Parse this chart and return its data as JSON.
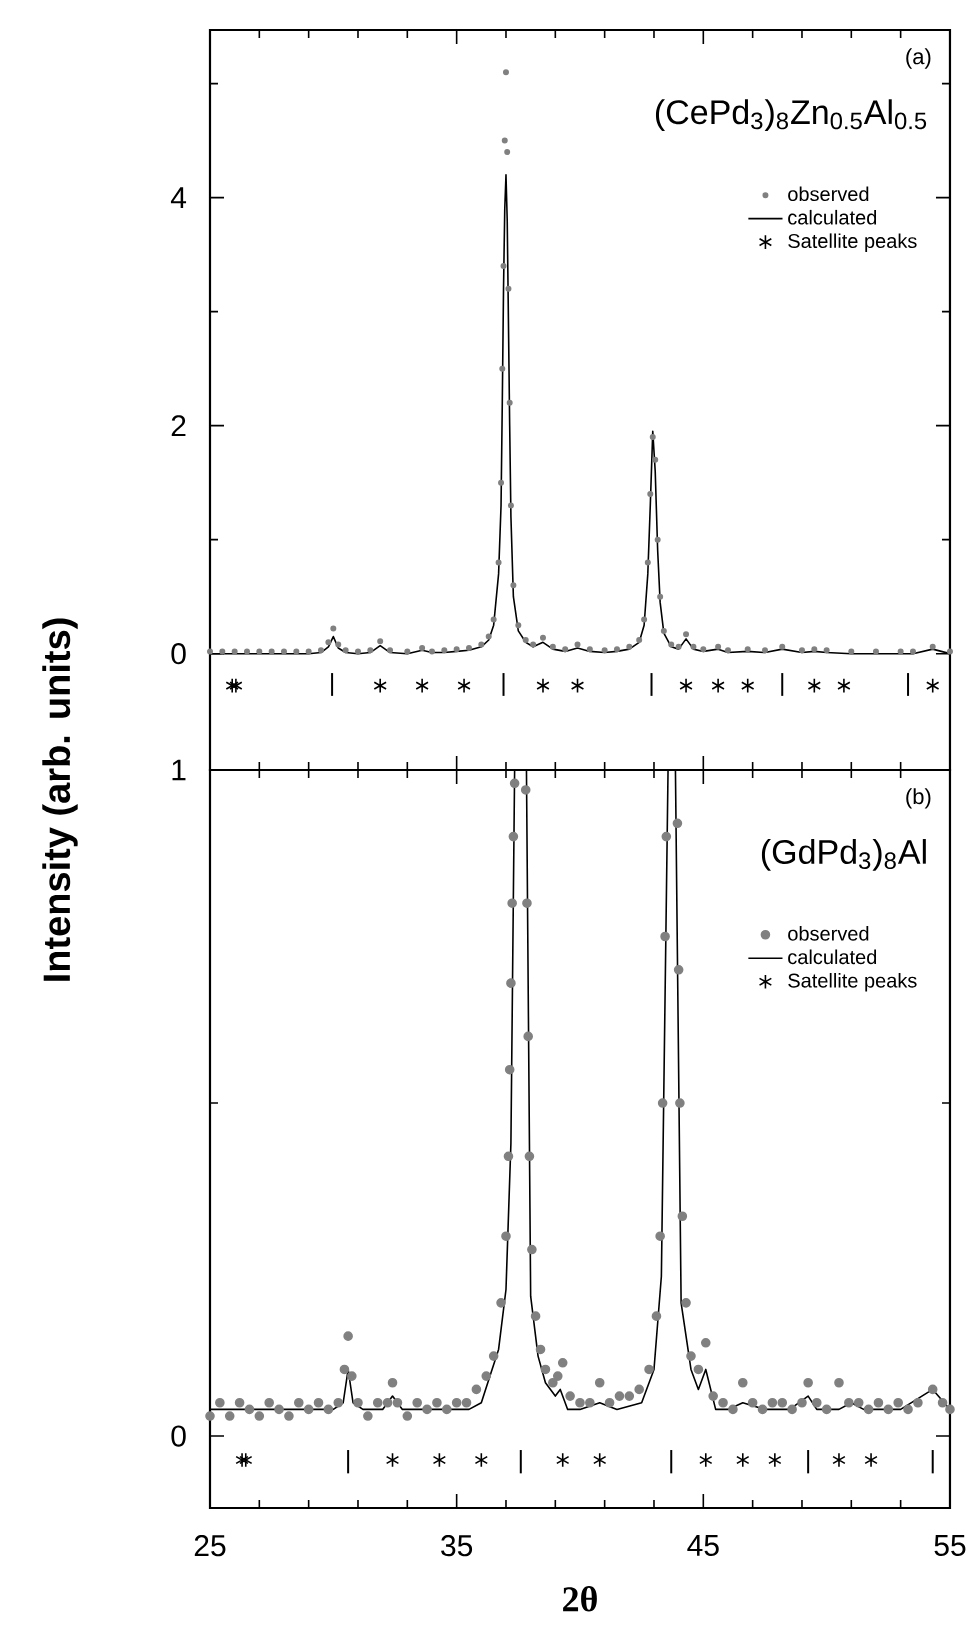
{
  "chart_data": [
    {
      "type": "scatter",
      "title": "(CePd$_{3}$)$_{8}$Zn$_{0.5}$Al$_{0.5}$",
      "ylabel": "Intensity (arb. units)",
      "annotations": [
        "(a)"
      ],
      "xlim": [
        25,
        55
      ],
      "ylim": [
        -1.02,
        5.47
      ],
      "xticks": [
        25,
        {
          "value": 27,
          "label": null
        },
        {
          "value": 29,
          "label": null
        },
        {
          "value": 31,
          "label": null
        },
        {
          "value": 33,
          "label": null
        },
        35,
        {
          "value": 37,
          "label": null
        },
        {
          "value": 39,
          "label": null
        },
        {
          "value": 41,
          "label": null
        },
        {
          "value": 43,
          "label": null
        },
        45,
        {
          "value": 47,
          "label": null
        },
        {
          "value": 49,
          "label": null
        },
        {
          "value": 51,
          "label": null
        },
        {
          "value": 53,
          "label": null
        },
        55
      ],
      "yticks": [
        0,
        {
          "value": 1,
          "label": null
        },
        2,
        {
          "value": 3,
          "label": null
        },
        4,
        {
          "value": 5,
          "label": null
        }
      ],
      "tick_labels": "y",
      "legend": "top right",
      "series": [
        {
          "name": "observed",
          "marker": "circle",
          "color": "#808080",
          "x": [
            25,
            25.5,
            26,
            26.5,
            27,
            27.5,
            28,
            28.5,
            29,
            29.5,
            29.8,
            30,
            30.2,
            30.5,
            31,
            31.5,
            31.9,
            32.3,
            33,
            33.6,
            34,
            34.5,
            35,
            35.5,
            36,
            36.3,
            36.5,
            36.7,
            36.8,
            36.85,
            36.9,
            36.95,
            37,
            37.05,
            37.1,
            37.15,
            37.2,
            37.3,
            37.5,
            37.8,
            38.1,
            38.5,
            38.9,
            39.4,
            39.9,
            40.4,
            41,
            41.5,
            42,
            42.4,
            42.6,
            42.75,
            42.85,
            42.95,
            43.05,
            43.15,
            43.25,
            43.4,
            43.7,
            44,
            44.3,
            44.6,
            45,
            45.6,
            46,
            46.8,
            47.5,
            48.2,
            49,
            49.5,
            50,
            51,
            52,
            53,
            53.5,
            54.3,
            55
          ],
          "values": [
            0.02,
            0.02,
            0.02,
            0.02,
            0.02,
            0.02,
            0.02,
            0.02,
            0.02,
            0.03,
            0.1,
            0.22,
            0.08,
            0.03,
            0.02,
            0.03,
            0.11,
            0.03,
            0.02,
            0.05,
            0.02,
            0.03,
            0.04,
            0.05,
            0.08,
            0.15,
            0.3,
            0.8,
            1.5,
            2.5,
            3.4,
            4.5,
            5.1,
            4.4,
            3.2,
            2.2,
            1.3,
            0.6,
            0.25,
            0.12,
            0.08,
            0.14,
            0.06,
            0.04,
            0.08,
            0.04,
            0.03,
            0.04,
            0.06,
            0.12,
            0.3,
            0.8,
            1.4,
            1.9,
            1.7,
            1.0,
            0.5,
            0.2,
            0.08,
            0.06,
            0.17,
            0.06,
            0.04,
            0.06,
            0.03,
            0.04,
            0.03,
            0.06,
            0.03,
            0.04,
            0.03,
            0.02,
            0.02,
            0.02,
            0.02,
            0.06,
            0.02
          ]
        },
        {
          "name": "calculated",
          "type": "line",
          "marker": "none",
          "line_style": "solid",
          "color": "#000000",
          "x": [
            25,
            25.5,
            26,
            26.5,
            27,
            27.5,
            28,
            28.5,
            29,
            29.5,
            29.8,
            30,
            30.2,
            30.5,
            31,
            31.5,
            31.9,
            32.3,
            33,
            33.6,
            34,
            34.5,
            35,
            35.5,
            36,
            36.3,
            36.5,
            36.7,
            36.8,
            36.85,
            36.9,
            36.95,
            37,
            37.05,
            37.1,
            37.15,
            37.2,
            37.3,
            37.5,
            37.8,
            38.1,
            38.5,
            38.9,
            39.4,
            39.9,
            40.4,
            41,
            41.5,
            42,
            42.4,
            42.6,
            42.75,
            42.85,
            42.95,
            43.05,
            43.15,
            43.25,
            43.4,
            43.7,
            44,
            44.3,
            44.6,
            45,
            45.6,
            46,
            46.8,
            47.5,
            48.2,
            49,
            49.5,
            50,
            51,
            52,
            53,
            53.5,
            54.3,
            55
          ],
          "values": [
            0,
            0,
            0,
            0,
            0,
            0,
            0,
            0,
            0,
            0.01,
            0.06,
            0.15,
            0.05,
            0.01,
            0,
            0.01,
            0.07,
            0.01,
            0,
            0.03,
            0.01,
            0.01,
            0.02,
            0.03,
            0.06,
            0.12,
            0.25,
            0.7,
            1.3,
            2.2,
            3.2,
            3.9,
            4.2,
            3.8,
            2.9,
            2.0,
            1.2,
            0.5,
            0.2,
            0.1,
            0.06,
            0.1,
            0.04,
            0.02,
            0.05,
            0.02,
            0.01,
            0.02,
            0.04,
            0.1,
            0.25,
            0.7,
            1.3,
            1.95,
            1.6,
            0.9,
            0.45,
            0.18,
            0.06,
            0.04,
            0.13,
            0.04,
            0.02,
            0.04,
            0.01,
            0.02,
            0.01,
            0.04,
            0.01,
            0.02,
            0.01,
            0,
            0,
            0,
            0,
            0.04,
            0
          ]
        },
        {
          "name": "Satellite peaks",
          "marker": "cross",
          "color": "#000000",
          "x": [
            25.9,
            26.05,
            31.9,
            33.6,
            35.3,
            38.5,
            39.9,
            44.3,
            45.6,
            46.8,
            49.5,
            50.7,
            54.3
          ],
          "values": [
            -0.28,
            -0.28,
            -0.28,
            -0.28,
            -0.28,
            -0.28,
            -0.28,
            -0.28,
            -0.28,
            -0.28,
            -0.28,
            -0.28,
            -0.28
          ]
        },
        {
          "type": "bar",
          "color": "#000000",
          "x": [
            29.95,
            36.9,
            42.9,
            48.2,
            53.3
          ],
          "base": [
            -0.37,
            -0.37,
            -0.37,
            -0.37,
            -0.37
          ],
          "values": [
            0.2,
            0.2,
            0.2,
            0.2,
            0.2
          ]
        }
      ]
    },
    {
      "type": "scatter",
      "title": "(GdPd$_{3}$)$_{8}$Al",
      "xlabel": "2θ",
      "annotations": [
        "(b)"
      ],
      "xlim": [
        25,
        55
      ],
      "ylim": [
        -0.108,
        1
      ],
      "xticks": [
        25,
        {
          "value": 27,
          "label": null
        },
        {
          "value": 29,
          "label": null
        },
        {
          "value": 31,
          "label": null
        },
        {
          "value": 33,
          "label": null
        },
        35,
        {
          "value": 37,
          "label": null
        },
        {
          "value": 39,
          "label": null
        },
        {
          "value": 41,
          "label": null
        },
        {
          "value": 43,
          "label": null
        },
        45,
        {
          "value": 47,
          "label": null
        },
        {
          "value": 49,
          "label": null
        },
        {
          "value": 51,
          "label": null
        },
        {
          "value": 53,
          "label": null
        },
        55
      ],
      "yticks": [
        0,
        {
          "value": 0.5,
          "label": null
        },
        1
      ],
      "legend": "top right",
      "series": [
        {
          "name": "observed",
          "marker": "circle",
          "color": "#808080",
          "x": [
            25,
            25.4,
            25.8,
            26.2,
            26.6,
            27,
            27.4,
            27.8,
            28.2,
            28.6,
            29,
            29.4,
            29.8,
            30.2,
            30.45,
            30.6,
            30.75,
            31,
            31.4,
            31.8,
            32.2,
            32.4,
            32.6,
            33,
            33.4,
            33.8,
            34.2,
            34.6,
            35,
            35.4,
            35.8,
            36.2,
            36.5,
            36.8,
            37,
            37.1,
            37.15,
            37.2,
            37.25,
            37.3,
            37.35,
            37.8,
            37.85,
            37.9,
            37.95,
            38.05,
            38.2,
            38.4,
            38.6,
            38.9,
            39.1,
            39.3,
            39.6,
            40,
            40.4,
            40.8,
            41.2,
            41.6,
            42,
            42.4,
            42.8,
            43.1,
            43.25,
            43.35,
            43.45,
            43.5,
            43.95,
            44.0,
            44.05,
            44.15,
            44.3,
            44.5,
            44.8,
            45.1,
            45.4,
            45.8,
            46.2,
            46.6,
            47,
            47.4,
            47.8,
            48.2,
            48.6,
            49,
            49.25,
            49.6,
            50,
            50.5,
            50.9,
            51.3,
            51.7,
            52.1,
            52.5,
            52.9,
            53.3,
            53.7,
            54.3,
            54.7,
            55
          ],
          "values": [
            0.03,
            0.05,
            0.03,
            0.05,
            0.04,
            0.03,
            0.05,
            0.04,
            0.03,
            0.05,
            0.04,
            0.05,
            0.04,
            0.05,
            0.1,
            0.15,
            0.09,
            0.05,
            0.03,
            0.05,
            0.05,
            0.08,
            0.05,
            0.03,
            0.05,
            0.04,
            0.05,
            0.04,
            0.05,
            0.05,
            0.07,
            0.09,
            0.12,
            0.2,
            0.3,
            0.42,
            0.55,
            0.68,
            0.8,
            0.9,
            0.98,
            0.97,
            0.8,
            0.6,
            0.42,
            0.28,
            0.18,
            0.13,
            0.1,
            0.08,
            0.09,
            0.11,
            0.06,
            0.05,
            0.05,
            0.08,
            0.05,
            0.06,
            0.06,
            0.07,
            0.1,
            0.18,
            0.3,
            0.5,
            0.75,
            0.9,
            0.92,
            0.7,
            0.5,
            0.33,
            0.2,
            0.12,
            0.1,
            0.14,
            0.06,
            0.05,
            0.04,
            0.08,
            0.05,
            0.04,
            0.05,
            0.05,
            0.04,
            0.05,
            0.08,
            0.05,
            0.04,
            0.08,
            0.05,
            0.05,
            0.04,
            0.05,
            0.04,
            0.05,
            0.04,
            0.05,
            0.07,
            0.05,
            0.04
          ]
        },
        {
          "name": "calculated",
          "type": "line",
          "marker": "none",
          "line_style": "solid",
          "color": "#000000",
          "x": [
            25,
            26,
            27,
            28,
            29,
            30,
            30.4,
            30.6,
            30.8,
            31.2,
            32,
            32.4,
            32.8,
            33.5,
            34.5,
            35.5,
            36,
            36.35,
            36.7,
            37,
            37.2,
            37.35,
            37.6,
            37.83,
            38,
            38.3,
            38.6,
            39,
            39.2,
            39.5,
            40,
            40.8,
            41.5,
            42.5,
            43,
            43.3,
            43.57,
            43.72,
            43.87,
            44.1,
            44.5,
            44.8,
            45.1,
            45.5,
            46,
            46.6,
            47.5,
            48.5,
            49.25,
            49.6,
            50.5,
            51,
            51.5,
            53,
            54.3,
            55
          ],
          "values": [
            0.04,
            0.04,
            0.04,
            0.04,
            0.04,
            0.04,
            0.05,
            0.1,
            0.05,
            0.04,
            0.04,
            0.06,
            0.04,
            0.04,
            0.04,
            0.04,
            0.05,
            0.09,
            0.13,
            0.22,
            0.44,
            1.0,
            null,
            1.0,
            0.21,
            0.12,
            0.08,
            0.06,
            0.07,
            0.04,
            0.04,
            0.05,
            0.04,
            0.05,
            0.1,
            0.24,
            1.0,
            null,
            1.0,
            0.2,
            0.1,
            0.07,
            0.1,
            0.04,
            0.04,
            0.05,
            0.04,
            0.04,
            0.06,
            0.04,
            0.04,
            0.05,
            0.04,
            0.04,
            0.07,
            0.04
          ]
        },
        {
          "name": "Satellite peaks",
          "marker": "cross",
          "color": "#000000",
          "x": [
            26.3,
            26.45,
            32.4,
            34.3,
            36.0,
            39.3,
            40.8,
            45.1,
            46.6,
            47.9,
            50.5,
            51.8
          ],
          "values": [
            -0.036,
            -0.036,
            -0.036,
            -0.036,
            -0.036,
            -0.036,
            -0.036,
            -0.036,
            -0.036,
            -0.036,
            -0.036,
            -0.036
          ]
        },
        {
          "type": "bar",
          "color": "#000000",
          "x": [
            30.6,
            37.6,
            43.7,
            49.25,
            54.3
          ],
          "base": [
            -0.056,
            -0.056,
            -0.056,
            -0.056,
            -0.056
          ],
          "values": [
            0.035,
            0.035,
            0.035,
            0.035,
            0.035
          ]
        }
      ]
    }
  ]
}
